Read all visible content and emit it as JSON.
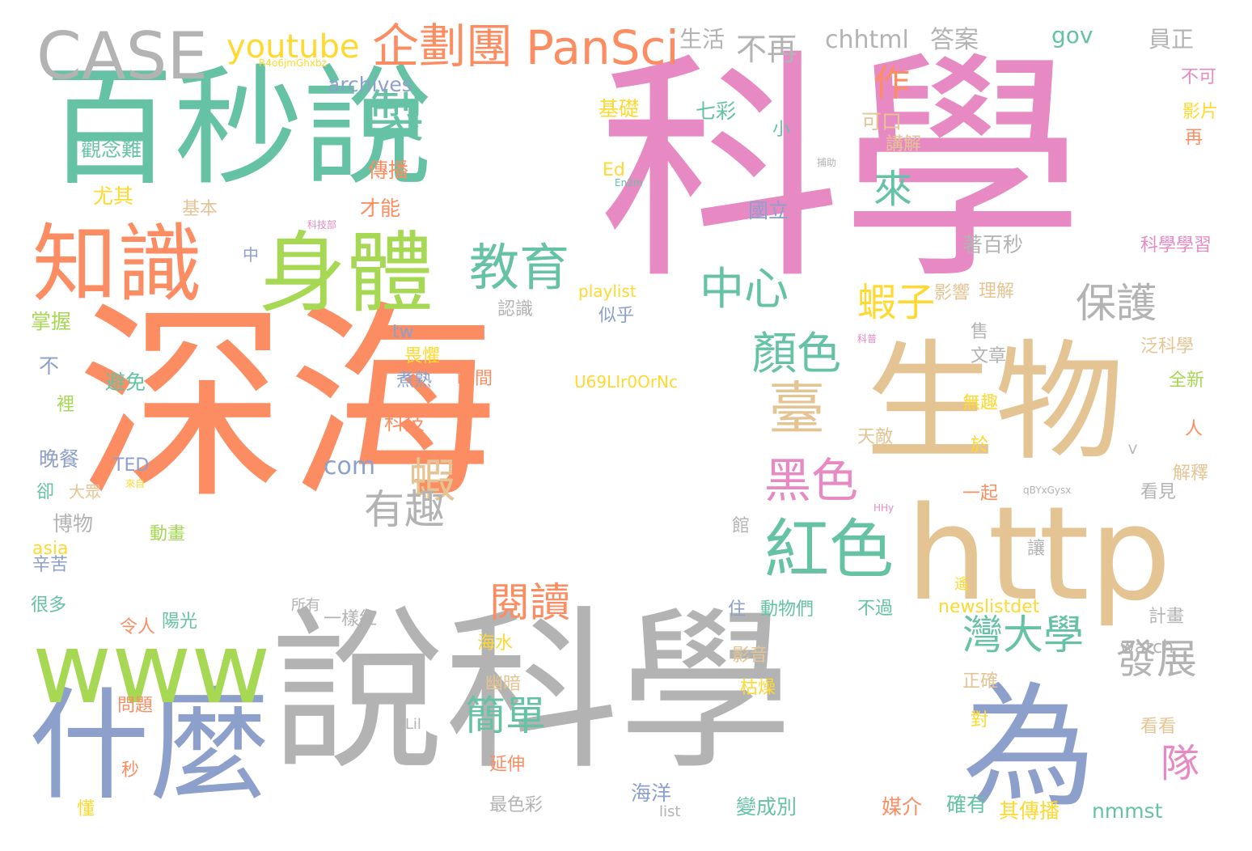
{
  "palette": {
    "green": "#66c2a5",
    "orange": "#fc8d62",
    "blue": "#8da0cb",
    "pink": "#e78ac3",
    "lime": "#a6d854",
    "yellow": "#ffd92f",
    "tan": "#e5c494",
    "gray": "#b3b3b3"
  },
  "words": [
    {
      "text": "科學",
      "color": "pink"
    },
    {
      "text": "深海",
      "color": "orange"
    },
    {
      "text": "說科學",
      "color": "gray"
    },
    {
      "text": "百秒說",
      "color": "green"
    },
    {
      "text": "生物",
      "color": "tan"
    },
    {
      "text": "http",
      "color": "tan"
    },
    {
      "text": "什麼",
      "color": "blue"
    },
    {
      "text": "www",
      "color": "lime"
    },
    {
      "text": "為",
      "color": "blue"
    },
    {
      "text": "CASE",
      "color": "gray"
    },
    {
      "text": "知識",
      "color": "orange"
    },
    {
      "text": "身體",
      "color": "lime"
    },
    {
      "text": "紅色",
      "color": "green"
    },
    {
      "text": "製",
      "color": "green"
    },
    {
      "text": "企劃團",
      "color": "orange"
    },
    {
      "text": "PanSci",
      "color": "orange"
    },
    {
      "text": "教育",
      "color": "green"
    },
    {
      "text": "中心",
      "color": "green"
    },
    {
      "text": "臺",
      "color": "tan"
    },
    {
      "text": "黑色",
      "color": "pink"
    },
    {
      "text": "顏色",
      "color": "green"
    },
    {
      "text": "蝦",
      "color": "tan"
    },
    {
      "text": "有趣",
      "color": "gray"
    },
    {
      "text": "閱讀",
      "color": "orange"
    },
    {
      "text": "簡單",
      "color": "green"
    },
    {
      "text": "灣大學",
      "color": "green"
    },
    {
      "text": "發展",
      "color": "gray"
    },
    {
      "text": "保護",
      "color": "gray"
    },
    {
      "text": "來",
      "color": "green"
    },
    {
      "text": "作",
      "color": "orange"
    },
    {
      "text": "蝦子",
      "color": "yellow"
    },
    {
      "text": "隊",
      "color": "pink"
    },
    {
      "text": "youtube",
      "color": "yellow"
    },
    {
      "text": "不再",
      "color": "gray"
    },
    {
      "text": "chhtml",
      "color": "gray"
    },
    {
      "text": "答案",
      "color": "gray"
    },
    {
      "text": "gov",
      "color": "green"
    },
    {
      "text": "員正",
      "color": "gray"
    },
    {
      "text": "生活",
      "color": "gray"
    },
    {
      "text": "R4o6jmGhxbz",
      "color": "yellow"
    },
    {
      "text": "archives",
      "color": "blue"
    },
    {
      "text": "觀念難",
      "color": "green"
    },
    {
      "text": "尤其",
      "color": "yellow"
    },
    {
      "text": "基礎",
      "color": "yellow"
    },
    {
      "text": "七彩",
      "color": "green"
    },
    {
      "text": "可口",
      "color": "tan"
    },
    {
      "text": "講解",
      "color": "tan"
    },
    {
      "text": "小",
      "color": "green"
    },
    {
      "text": "Ed",
      "color": "yellow"
    },
    {
      "text": "傳播",
      "color": "orange"
    },
    {
      "text": "才能",
      "color": "orange"
    },
    {
      "text": "基本",
      "color": "tan"
    },
    {
      "text": "國立",
      "color": "blue"
    },
    {
      "text": "著百秒",
      "color": "gray"
    },
    {
      "text": "科學學習",
      "color": "pink"
    },
    {
      "text": "影響",
      "color": "tan"
    },
    {
      "text": "理解",
      "color": "tan"
    },
    {
      "text": "中",
      "color": "blue"
    },
    {
      "text": "playlist",
      "color": "yellow"
    },
    {
      "text": "似乎",
      "color": "blue"
    },
    {
      "text": "認識",
      "color": "gray"
    },
    {
      "text": "掌握",
      "color": "lime"
    },
    {
      "text": "tw",
      "color": "blue"
    },
    {
      "text": "畏懼",
      "color": "yellow"
    },
    {
      "text": "煮熟",
      "color": "blue"
    },
    {
      "text": "時間",
      "color": "orange"
    },
    {
      "text": "U69LIr0OrNc",
      "color": "yellow"
    },
    {
      "text": "文章",
      "color": "gray"
    },
    {
      "text": "泛科學",
      "color": "tan"
    },
    {
      "text": "全新",
      "color": "lime"
    },
    {
      "text": "不",
      "color": "blue"
    },
    {
      "text": "避免",
      "color": "green"
    },
    {
      "text": "裡",
      "color": "lime"
    },
    {
      "text": "科技",
      "color": "orange"
    },
    {
      "text": "無趣",
      "color": "yellow"
    },
    {
      "text": "人",
      "color": "orange"
    },
    {
      "text": "晚餐",
      "color": "blue"
    },
    {
      "text": "TED",
      "color": "blue"
    },
    {
      "text": "com",
      "color": "blue"
    },
    {
      "text": "天敵",
      "color": "tan"
    },
    {
      "text": "於",
      "color": "yellow"
    },
    {
      "text": "解釋",
      "color": "tan"
    },
    {
      "text": "卻",
      "color": "green"
    },
    {
      "text": "大眾",
      "color": "tan"
    },
    {
      "text": "一起",
      "color": "orange"
    },
    {
      "text": "看見",
      "color": "gray"
    },
    {
      "text": "博物",
      "color": "gray"
    },
    {
      "text": "動畫",
      "color": "lime"
    },
    {
      "text": "館",
      "color": "gray"
    },
    {
      "text": "讓",
      "color": "gray"
    },
    {
      "text": "asia",
      "color": "yellow"
    },
    {
      "text": "辛苦",
      "color": "blue"
    },
    {
      "text": "很多",
      "color": "green"
    },
    {
      "text": "令人",
      "color": "orange"
    },
    {
      "text": "陽光",
      "color": "green"
    },
    {
      "text": "所有",
      "color": "gray"
    },
    {
      "text": "一樣紅",
      "color": "gray"
    },
    {
      "text": "住",
      "color": "blue"
    },
    {
      "text": "動物們",
      "color": "green"
    },
    {
      "text": "不過",
      "color": "green"
    },
    {
      "text": "newslistdet",
      "color": "yellow"
    },
    {
      "text": "計畫",
      "color": "gray"
    },
    {
      "text": "watch",
      "color": "gray"
    },
    {
      "text": "海水",
      "color": "yellow"
    },
    {
      "text": "影音",
      "color": "tan"
    },
    {
      "text": "枯燥",
      "color": "yellow"
    },
    {
      "text": "幽暗",
      "color": "tan"
    },
    {
      "text": "正確",
      "color": "tan"
    },
    {
      "text": "問題",
      "color": "orange"
    },
    {
      "text": "PLil",
      "color": "gray"
    },
    {
      "text": "對",
      "color": "yellow"
    },
    {
      "text": "看看",
      "color": "tan"
    },
    {
      "text": "秒",
      "color": "orange"
    },
    {
      "text": "延伸",
      "color": "orange"
    },
    {
      "text": "最色彩",
      "color": "gray"
    },
    {
      "text": "海洋",
      "color": "blue"
    },
    {
      "text": "變成別",
      "color": "green"
    },
    {
      "text": "媒介",
      "color": "orange"
    },
    {
      "text": "確有",
      "color": "green"
    },
    {
      "text": "其傳播",
      "color": "yellow"
    },
    {
      "text": "nmmst",
      "color": "green"
    },
    {
      "text": "懂",
      "color": "yellow"
    },
    {
      "text": "list",
      "color": "gray"
    },
    {
      "text": "qBYxGysx",
      "color": "gray"
    },
    {
      "text": "HHy",
      "color": "pink"
    },
    {
      "text": "V",
      "color": "gray"
    },
    {
      "text": "遙",
      "color": "yellow"
    },
    {
      "text": "不可",
      "color": "pink"
    },
    {
      "text": "影片",
      "color": "yellow"
    },
    {
      "text": "再",
      "color": "orange"
    },
    {
      "text": "科技部",
      "color": "pink"
    },
    {
      "text": "科普",
      "color": "pink"
    },
    {
      "text": "En2m",
      "color": "green"
    },
    {
      "text": "捕助",
      "color": "gray"
    },
    {
      "text": "售",
      "color": "gray"
    },
    {
      "text": "來自",
      "color": "yellow"
    }
  ]
}
